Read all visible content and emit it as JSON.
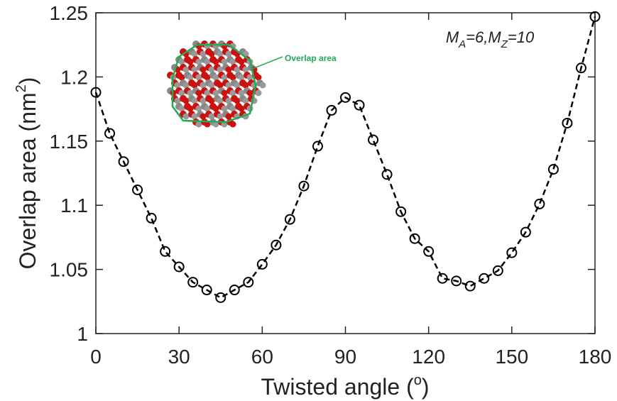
{
  "chart_data": {
    "type": "line",
    "x_label_parts": [
      "Twisted angle (",
      "o",
      ")"
    ],
    "y_label_parts": [
      "Overlap area (nm",
      "2",
      ")"
    ],
    "annotation_parts": [
      "M",
      "A",
      "=6,M",
      "Z",
      "=10"
    ],
    "inset_label": "Overlap area",
    "x": [
      0,
      5,
      10,
      15,
      20,
      25,
      30,
      35,
      40,
      45,
      50,
      55,
      60,
      65,
      70,
      75,
      80,
      85,
      90,
      95,
      100,
      105,
      110,
      115,
      120,
      125,
      130,
      135,
      140,
      145,
      150,
      155,
      160,
      165,
      170,
      175,
      180
    ],
    "values": [
      1.188,
      1.156,
      1.134,
      1.112,
      1.09,
      1.064,
      1.052,
      1.04,
      1.034,
      1.028,
      1.034,
      1.04,
      1.054,
      1.069,
      1.089,
      1.115,
      1.146,
      1.174,
      1.184,
      1.178,
      1.151,
      1.124,
      1.095,
      1.074,
      1.064,
      1.043,
      1.041,
      1.037,
      1.043,
      1.049,
      1.063,
      1.079,
      1.101,
      1.128,
      1.164,
      1.207,
      1.247
    ],
    "color": "#000000",
    "xlim": [
      0,
      180
    ],
    "ylim": [
      1,
      1.25
    ],
    "xticks": [
      0,
      30,
      60,
      90,
      120,
      150,
      180
    ],
    "yticks": [
      1,
      1.05,
      1.1,
      1.15,
      1.2,
      1.25
    ]
  }
}
